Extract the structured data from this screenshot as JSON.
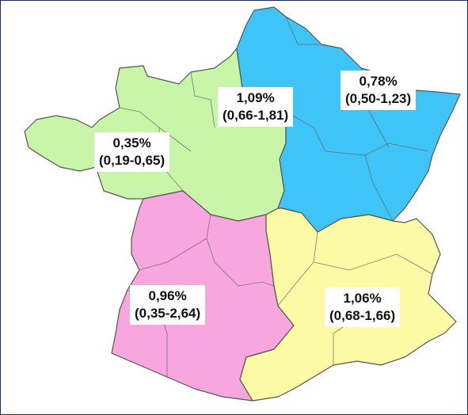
{
  "colors": {
    "northwest": "#c9f5a8",
    "northeast": "#3ec4f6",
    "southwest": "#f7a6de",
    "southeast": "#fdfaa6"
  },
  "regions": {
    "northwest": {
      "pct": "0,35%",
      "ci": "(0,19-0,65)"
    },
    "paris": {
      "pct": "1,09%",
      "ci": "(0,66-1,81)"
    },
    "northeast": {
      "pct": "0,78%",
      "ci": "(0,50-1,23)"
    },
    "southwest": {
      "pct": "0,96%",
      "ci": "(0,35-2,64)"
    },
    "southeast": {
      "pct": "1,06%",
      "ci": "(0,68-1,66)"
    }
  }
}
